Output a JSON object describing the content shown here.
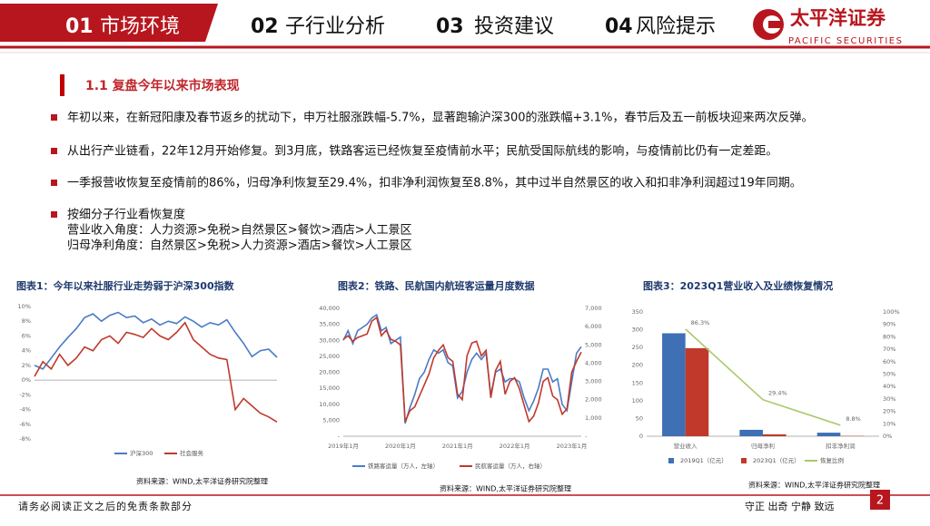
{
  "header": {
    "tabs": [
      {
        "number": "01",
        "label": "市场环境"
      },
      {
        "number": "02",
        "label": "子行业分析"
      },
      {
        "number": "03",
        "label": "投资建议"
      },
      {
        "number": "04",
        "label": "风险提示"
      }
    ],
    "logo": {
      "name": "太平洋证券",
      "english": "PACIFIC SECURITIES"
    }
  },
  "section_title": "1.1 复盘今年以来市场表现",
  "bullets": [
    {
      "lines": [
        "年初以来，在新冠阳康及春节返乡的扰动下，申万社服涨跌幅-5.7%，显著跑输沪深300的涨跌幅+3.1%，春节后及五一前板块迎来两次反弹。"
      ]
    },
    {
      "lines": [
        "从出行产业链看，22年12月开始修复。到3月底，铁路客运已经恢复至疫情前水平；民航受国际航线的影响，与疫情前比仍有一定差距。"
      ]
    },
    {
      "lines": [
        "一季报营收恢复至疫情前的86%，归母净利恢复至29.4%，扣非净利润恢复至8.8%，其中过半自然景区的收入和扣非净利润超过19年同期。"
      ]
    },
    {
      "lines": [
        "按细分子行业看恢复度",
        "营业收入角度：人力资源>免税>自然景区>餐饮>酒店>人工景区",
        "归母净利角度：自然景区>免税>人力资源>酒店>餐饮>人工景区"
      ]
    }
  ],
  "chart_data": [
    {
      "type": "line",
      "title": "图表1：今年以来社服行业走势弱于沪深300指数",
      "ylim": [
        -8,
        10
      ],
      "yticks": [
        {
          "value": 10,
          "label": "10%"
        },
        {
          "value": 8,
          "label": "8%"
        },
        {
          "value": 6,
          "label": "6%"
        },
        {
          "value": 4,
          "label": "4%"
        },
        {
          "value": 2,
          "label": "2%"
        },
        {
          "value": 0,
          "label": "0%"
        },
        {
          "value": -2,
          "label": "-2%"
        },
        {
          "value": -4,
          "label": "-4%"
        },
        {
          "value": -6,
          "label": "-6%"
        },
        {
          "value": -8,
          "label": "-8%"
        }
      ],
      "series": [
        {
          "name": "沪深300",
          "color": "#4a7bc8",
          "values": [
            2.0,
            1.5,
            3.0,
            4.5,
            5.8,
            7.0,
            8.5,
            9.0,
            8.0,
            8.8,
            9.2,
            8.5,
            8.7,
            7.8,
            8.3,
            7.5,
            8.0,
            7.7,
            8.6,
            8.0,
            7.2,
            7.8,
            7.5,
            8.2,
            6.5,
            5.0,
            3.2,
            4.0,
            4.2,
            3.1
          ]
        },
        {
          "name": "社会服务",
          "color": "#c0392b",
          "values": [
            0.5,
            2.5,
            1.5,
            3.5,
            2.0,
            3.0,
            4.5,
            4.0,
            5.5,
            6.0,
            5.0,
            6.5,
            6.2,
            5.8,
            7.0,
            6.0,
            5.5,
            6.5,
            7.8,
            5.5,
            4.5,
            3.5,
            3.0,
            2.8,
            -4.0,
            -2.5,
            -3.5,
            -4.5,
            -5.0,
            -5.7
          ]
        }
      ]
    },
    {
      "type": "line",
      "title": "图表2：铁路、民航国内航班客运量月度数据",
      "source": "资料来源：WIND,太平洋证券研究院整理",
      "categories": [
        "2019年1月",
        null,
        null,
        null,
        null,
        null,
        null,
        null,
        null,
        null,
        null,
        null,
        "2020年1月",
        null,
        null,
        null,
        null,
        null,
        null,
        null,
        null,
        null,
        null,
        null,
        "2021年1月",
        null,
        null,
        null,
        null,
        null,
        null,
        null,
        null,
        null,
        null,
        null,
        "2022年1月",
        null,
        null,
        null,
        null,
        null,
        null,
        null,
        null,
        null,
        null,
        null,
        "2023年1月",
        null,
        null
      ],
      "ylim": [
        0,
        40000
      ],
      "yticks": [
        {
          "value": 40000,
          "label": "40,000"
        },
        {
          "value": 35000,
          "label": "35,000"
        },
        {
          "value": 30000,
          "label": "30,000"
        },
        {
          "value": 25000,
          "label": "25,000"
        },
        {
          "value": 20000,
          "label": "20,000"
        },
        {
          "value": 15000,
          "label": "15,000"
        },
        {
          "value": 10000,
          "label": "10,000"
        },
        {
          "value": 5000,
          "label": "5,000"
        },
        {
          "value": 0,
          "label": "-"
        }
      ],
      "y2lim": [
        0,
        7000
      ],
      "y2ticks": [
        {
          "value": 7000,
          "label": "7,000"
        },
        {
          "value": 6000,
          "label": "6,000"
        },
        {
          "value": 5000,
          "label": "5,000"
        },
        {
          "value": 4000,
          "label": "4,000"
        },
        {
          "value": 3000,
          "label": "3,000"
        },
        {
          "value": 2000,
          "label": "2,000"
        },
        {
          "value": 1000,
          "label": "1,000"
        },
        {
          "value": 0,
          "label": "-"
        }
      ],
      "series": [
        {
          "name": "铁路客运量（万人，左轴）",
          "color": "#4a7bc8",
          "values": [
            30000,
            33000,
            29000,
            33000,
            34000,
            35000,
            37000,
            38000,
            33000,
            34000,
            29000,
            30000,
            31000,
            4000,
            9000,
            13000,
            18000,
            20000,
            24000,
            27000,
            26000,
            27000,
            23000,
            22000,
            12000,
            14000,
            20000,
            24000,
            26000,
            24000,
            26000,
            13000,
            20000,
            21000,
            17000,
            18000,
            18000,
            17000,
            12000,
            8000,
            11000,
            15000,
            21000,
            21000,
            17000,
            18000,
            10000,
            8000,
            17000,
            26000,
            28000
          ]
        },
        {
          "name": "民航客运量（万人，右轴）",
          "color": "#c0392b",
          "axis": "y2",
          "values": [
            5300,
            5500,
            5200,
            5400,
            5500,
            5600,
            6300,
            6500,
            5500,
            5800,
            5300,
            5200,
            5000,
            800,
            1400,
            1600,
            2200,
            2800,
            3400,
            4300,
            4700,
            5000,
            4300,
            4100,
            2300,
            2000,
            4400,
            5100,
            5200,
            4400,
            4700,
            2100,
            3600,
            4100,
            2300,
            3000,
            3200,
            2600,
            1700,
            800,
            1100,
            1800,
            3000,
            3200,
            2200,
            2000,
            1200,
            1500,
            3500,
            4100,
            4600
          ]
        }
      ]
    },
    {
      "type": "bar",
      "title": "图表3：2023Q1营业收入及业绩恢复情况",
      "source": "资料来源：WIND,太平洋证券研究院整理",
      "categories": [
        "营业收入",
        "归母净利",
        "扣非净利润"
      ],
      "ylim": [
        0,
        350
      ],
      "yticks": [
        350,
        300,
        250,
        200,
        150,
        100,
        50,
        0
      ],
      "y2lim": [
        0,
        100
      ],
      "y2ticks": [
        {
          "value": 100,
          "label": "100%"
        },
        {
          "value": 90,
          "label": "90%"
        },
        {
          "value": 80,
          "label": "80%"
        },
        {
          "value": 70,
          "label": "70%"
        },
        {
          "value": 60,
          "label": "60%"
        },
        {
          "value": 50,
          "label": "50%"
        },
        {
          "value": 40,
          "label": "40%"
        },
        {
          "value": 30,
          "label": "30%"
        },
        {
          "value": 20,
          "label": "20%"
        },
        {
          "value": 10,
          "label": "10%"
        },
        {
          "value": 0,
          "label": "0%"
        }
      ],
      "series": [
        {
          "name": "2019Q1（亿元）",
          "color": "#3f6fb5",
          "values": [
            290,
            18,
            10
          ]
        },
        {
          "name": "2023Q1（亿元）",
          "color": "#c0392b",
          "values": [
            248,
            5.3,
            0.88
          ]
        },
        {
          "name": "恢复比例",
          "color": "#a9c96a",
          "type": "line",
          "axis": "y2",
          "values": [
            86.3,
            29.4,
            8.8
          ],
          "value_labels": [
            "86.3%",
            "29.4%",
            "8.8%"
          ]
        }
      ]
    }
  ],
  "chart1_source": "资料来源：WIND,太平洋证券研究院整理",
  "footer": {
    "disclaimer": "请务必阅读正文之后的免责条款部分",
    "slogan": "守正 出奇 宁静 致远",
    "page": 2
  }
}
